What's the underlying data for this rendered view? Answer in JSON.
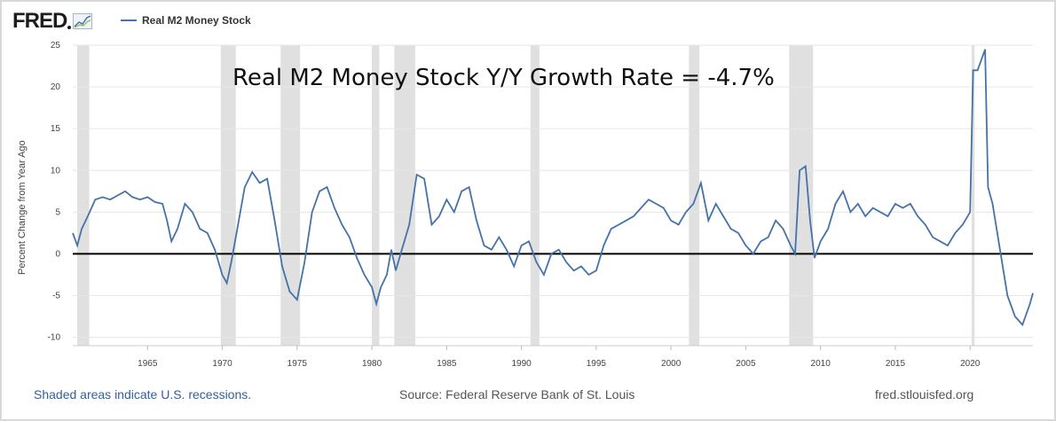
{
  "header": {
    "logo_text": "FRED",
    "series_legend": "Real M2 Money Stock"
  },
  "footer": {
    "recession_note": "Shaded areas indicate U.S. recessions.",
    "source": "Source: Federal Reserve Bank of St. Louis",
    "site": "fred.stlouisfed.org"
  },
  "colors": {
    "series": "#4572a7",
    "recession": "#e0e0e0",
    "zero_line": "#000000",
    "grid": "#e6e6e6"
  },
  "chart_data": {
    "type": "line",
    "title": "",
    "annotation": "Real M2 Money Stock Y/Y Growth Rate = -4.7%",
    "xlabel": "",
    "ylabel": "Percent Change from Year Ago",
    "xlim": [
      1960.0,
      2024.2
    ],
    "ylim": [
      -11,
      25
    ],
    "yticks": [
      25,
      20,
      15,
      10,
      5,
      0,
      -5,
      -10
    ],
    "xticks": [
      1965,
      1970,
      1975,
      1980,
      1985,
      1990,
      1995,
      2000,
      2005,
      2010,
      2015,
      2020
    ],
    "grid": true,
    "zero_line": true,
    "legend": "top-left",
    "recessions": [
      [
        1960.3,
        1961.1
      ],
      [
        1969.9,
        1970.9
      ],
      [
        1973.9,
        1975.2
      ],
      [
        1980.0,
        1980.5
      ],
      [
        1981.5,
        1982.9
      ],
      [
        1990.6,
        1991.2
      ],
      [
        2001.2,
        2001.9
      ],
      [
        2007.9,
        2009.5
      ],
      [
        2020.1,
        2020.3
      ]
    ],
    "series": [
      {
        "name": "Real M2 Money Stock",
        "x": [
          1960.0,
          1960.3,
          1960.6,
          1961.0,
          1961.5,
          1962.0,
          1962.5,
          1963.0,
          1963.5,
          1964.0,
          1964.5,
          1965.0,
          1965.5,
          1966.0,
          1966.3,
          1966.6,
          1967.0,
          1967.5,
          1968.0,
          1968.5,
          1969.0,
          1969.5,
          1970.0,
          1970.3,
          1970.6,
          1971.0,
          1971.5,
          1972.0,
          1972.5,
          1973.0,
          1973.5,
          1974.0,
          1974.5,
          1975.0,
          1975.5,
          1976.0,
          1976.5,
          1977.0,
          1977.5,
          1978.0,
          1978.5,
          1979.0,
          1979.5,
          1980.0,
          1980.3,
          1980.6,
          1981.0,
          1981.3,
          1981.6,
          1982.0,
          1982.5,
          1983.0,
          1983.5,
          1984.0,
          1984.5,
          1985.0,
          1985.5,
          1986.0,
          1986.5,
          1987.0,
          1987.5,
          1988.0,
          1988.5,
          1989.0,
          1989.5,
          1990.0,
          1990.5,
          1991.0,
          1991.5,
          1992.0,
          1992.5,
          1993.0,
          1993.5,
          1994.0,
          1994.5,
          1995.0,
          1995.5,
          1996.0,
          1996.5,
          1997.0,
          1997.5,
          1998.0,
          1998.5,
          1999.0,
          1999.5,
          2000.0,
          2000.5,
          2001.0,
          2001.5,
          2002.0,
          2002.5,
          2003.0,
          2003.5,
          2004.0,
          2004.5,
          2005.0,
          2005.5,
          2006.0,
          2006.5,
          2007.0,
          2007.5,
          2008.0,
          2008.3,
          2008.6,
          2009.0,
          2009.3,
          2009.6,
          2010.0,
          2010.5,
          2011.0,
          2011.5,
          2012.0,
          2012.5,
          2013.0,
          2013.5,
          2014.0,
          2014.5,
          2015.0,
          2015.5,
          2016.0,
          2016.5,
          2017.0,
          2017.5,
          2018.0,
          2018.5,
          2019.0,
          2019.5,
          2020.0,
          2020.2,
          2020.5,
          2021.0,
          2021.2,
          2021.5,
          2022.0,
          2022.5,
          2023.0,
          2023.5,
          2024.0,
          2024.2
        ],
        "values": [
          2.5,
          1.0,
          3.0,
          4.5,
          6.5,
          6.8,
          6.5,
          7.0,
          7.5,
          6.8,
          6.5,
          6.8,
          6.2,
          6.0,
          4.0,
          1.5,
          3.0,
          6.0,
          5.0,
          3.0,
          2.5,
          0.5,
          -2.5,
          -3.5,
          -1.0,
          3.0,
          8.0,
          9.8,
          8.5,
          9.0,
          4.0,
          -1.5,
          -4.5,
          -5.5,
          -1.0,
          5.0,
          7.5,
          8.0,
          5.5,
          3.5,
          2.0,
          -0.5,
          -2.5,
          -4.0,
          -6.0,
          -4.0,
          -2.5,
          0.5,
          -2.0,
          0.5,
          3.5,
          9.5,
          9.0,
          3.5,
          4.5,
          6.5,
          5.0,
          7.5,
          8.0,
          4.0,
          1.0,
          0.5,
          2.0,
          0.5,
          -1.5,
          1.0,
          1.5,
          -1.0,
          -2.5,
          0.0,
          0.5,
          -1.0,
          -2.0,
          -1.5,
          -2.5,
          -2.0,
          1.0,
          3.0,
          3.5,
          4.0,
          4.5,
          5.5,
          6.5,
          6.0,
          5.5,
          4.0,
          3.5,
          5.0,
          6.0,
          8.5,
          4.0,
          6.0,
          4.5,
          3.0,
          2.5,
          1.0,
          0.0,
          1.5,
          2.0,
          4.0,
          3.0,
          1.0,
          0.0,
          10.0,
          10.5,
          4.0,
          -0.5,
          1.5,
          3.0,
          6.0,
          7.5,
          5.0,
          6.0,
          4.5,
          5.5,
          5.0,
          4.5,
          6.0,
          5.5,
          6.0,
          4.5,
          3.5,
          2.0,
          1.5,
          1.0,
          2.5,
          3.5,
          5.0,
          22.0,
          22.0,
          24.5,
          8.0,
          6.0,
          0.5,
          -5.0,
          -7.5,
          -8.5,
          -6.0,
          -4.7
        ]
      }
    ]
  }
}
